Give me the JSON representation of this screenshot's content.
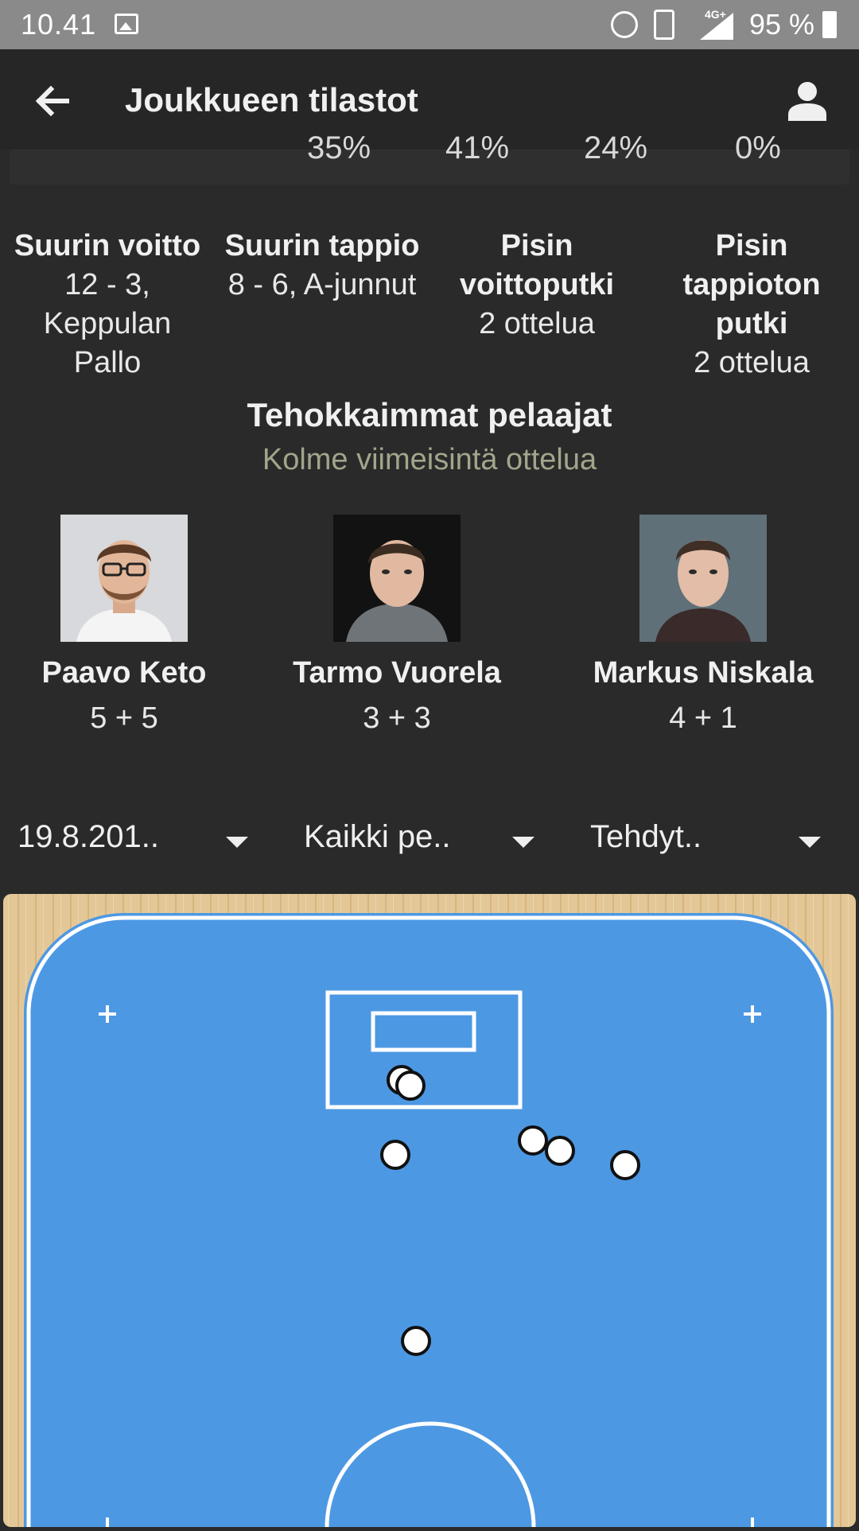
{
  "status_bar": {
    "time": "10.41",
    "network": "4G+",
    "battery": "95 %",
    "icons": [
      "image-icon",
      "alarm-icon",
      "vibrate-icon",
      "signal-icon",
      "battery-icon"
    ]
  },
  "app_bar": {
    "title": "Joukkueen tilastot",
    "icons": [
      "back-arrow-icon",
      "user-icon"
    ]
  },
  "percent_row": [
    "35%",
    "41%",
    "24%",
    "0%"
  ],
  "records": [
    {
      "heading": "Suurin voitto",
      "value_lines": [
        "12 - 3,",
        "Keppulan",
        "Pallo"
      ]
    },
    {
      "heading": "Suurin tappio",
      "value_lines": [
        "8 - 6, A-junnut"
      ]
    },
    {
      "heading_lines": [
        "Pisin",
        "voittoputki"
      ],
      "value_lines": [
        "2 ottelua"
      ]
    },
    {
      "heading_lines": [
        "Pisin",
        "tappioton",
        "putki"
      ],
      "value_lines": [
        "2 ottelua"
      ]
    }
  ],
  "top_players": {
    "title": "Tehokkaimmat pelaajat",
    "subtitle": "Kolme viimeisintä ottelua",
    "players": [
      {
        "name": "Paavo Keto",
        "stats": "5 + 5"
      },
      {
        "name": "Tarmo Vuorela",
        "stats": "3 + 3"
      },
      {
        "name": "Markus Niskala",
        "stats": "4 + 1"
      }
    ]
  },
  "filters": {
    "date": "19.8.201..",
    "players": "Kaikki pe..",
    "type": "Tehdyt.."
  },
  "colors": {
    "background": "#2a2a2a",
    "app_bar": "#262626",
    "status_bar": "#8a8a8a",
    "subtitle": "#a3a58b",
    "court_blue": "#4d98e3",
    "court_wood": "#e3c796"
  }
}
